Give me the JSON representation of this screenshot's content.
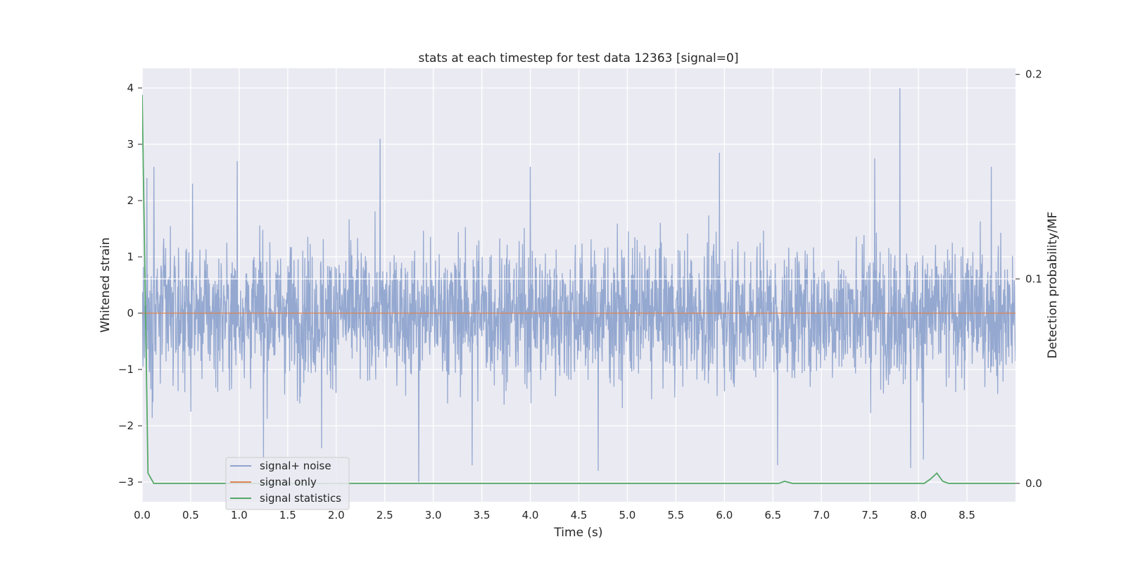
{
  "chart_data": {
    "type": "line",
    "title": "stats at each timestep for test data 12363 [signal=0]",
    "xlabel": "Time (s)",
    "ylabel": "Whitened strain",
    "y2label": "Detection probability/MF",
    "xlim": [
      0,
      9.0
    ],
    "ylim": [
      -3.35,
      4.35
    ],
    "y2lim": [
      -0.009,
      0.203
    ],
    "xticks": [
      0.0,
      0.5,
      1.0,
      1.5,
      2.0,
      2.5,
      3.0,
      3.5,
      4.0,
      4.5,
      5.0,
      5.5,
      6.0,
      6.5,
      7.0,
      7.5,
      8.0,
      8.5
    ],
    "yticks": [
      -3,
      -2,
      -1,
      0,
      1,
      2,
      3,
      4
    ],
    "y2ticks": [
      0.0,
      0.1,
      0.2
    ],
    "grid": true,
    "legend_position": "lower-left",
    "series": [
      {
        "name": "signal+ noise",
        "color": "#8fa4ce",
        "axis": "left",
        "description": "whitened noise, approx |x|<=2.5, peaks ~4.0 at t=7.81 and ~-3.0 at t=2.85",
        "peaks": [
          {
            "x": 0.05,
            "y": 2.4
          },
          {
            "x": 0.12,
            "y": 2.6
          },
          {
            "x": 0.52,
            "y": 2.3
          },
          {
            "x": 0.98,
            "y": 2.7
          },
          {
            "x": 1.25,
            "y": -2.6
          },
          {
            "x": 1.85,
            "y": -2.4
          },
          {
            "x": 2.45,
            "y": 3.1
          },
          {
            "x": 2.85,
            "y": -3.0
          },
          {
            "x": 3.4,
            "y": -2.7
          },
          {
            "x": 4.0,
            "y": 2.6
          },
          {
            "x": 4.7,
            "y": -2.8
          },
          {
            "x": 5.95,
            "y": 2.85
          },
          {
            "x": 6.55,
            "y": -2.7
          },
          {
            "x": 7.55,
            "y": 2.75
          },
          {
            "x": 7.81,
            "y": 4.0
          },
          {
            "x": 7.92,
            "y": -2.75
          },
          {
            "x": 8.05,
            "y": -2.6
          },
          {
            "x": 8.75,
            "y": 2.6
          }
        ]
      },
      {
        "name": "signal only",
        "color": "#dd8452",
        "axis": "left",
        "x": [
          0.0,
          9.0
        ],
        "y": [
          0.0,
          0.0
        ]
      },
      {
        "name": "signal statistics",
        "color": "#55a868",
        "axis": "right",
        "x": [
          0.0,
          0.06,
          0.12,
          0.5,
          1.0,
          2.0,
          3.0,
          4.0,
          5.0,
          6.0,
          6.5,
          6.56,
          6.62,
          6.7,
          7.0,
          7.5,
          8.0,
          8.06,
          8.12,
          8.19,
          8.25,
          8.31,
          8.5,
          9.0
        ],
        "y": [
          0.19,
          0.005,
          0.0,
          0.0,
          0.0,
          0.0,
          0.0,
          0.0,
          0.0,
          0.0,
          0.0,
          0.0,
          0.001,
          0.0,
          0.0,
          0.0,
          0.0,
          0.0,
          0.002,
          0.005,
          0.001,
          0.0,
          0.0,
          0.0
        ]
      }
    ]
  },
  "legend": {
    "items": [
      {
        "label": "signal+ noise",
        "color": "#8fa4ce"
      },
      {
        "label": "signal only",
        "color": "#dd8452"
      },
      {
        "label": "signal statistics",
        "color": "#55a868"
      }
    ]
  }
}
